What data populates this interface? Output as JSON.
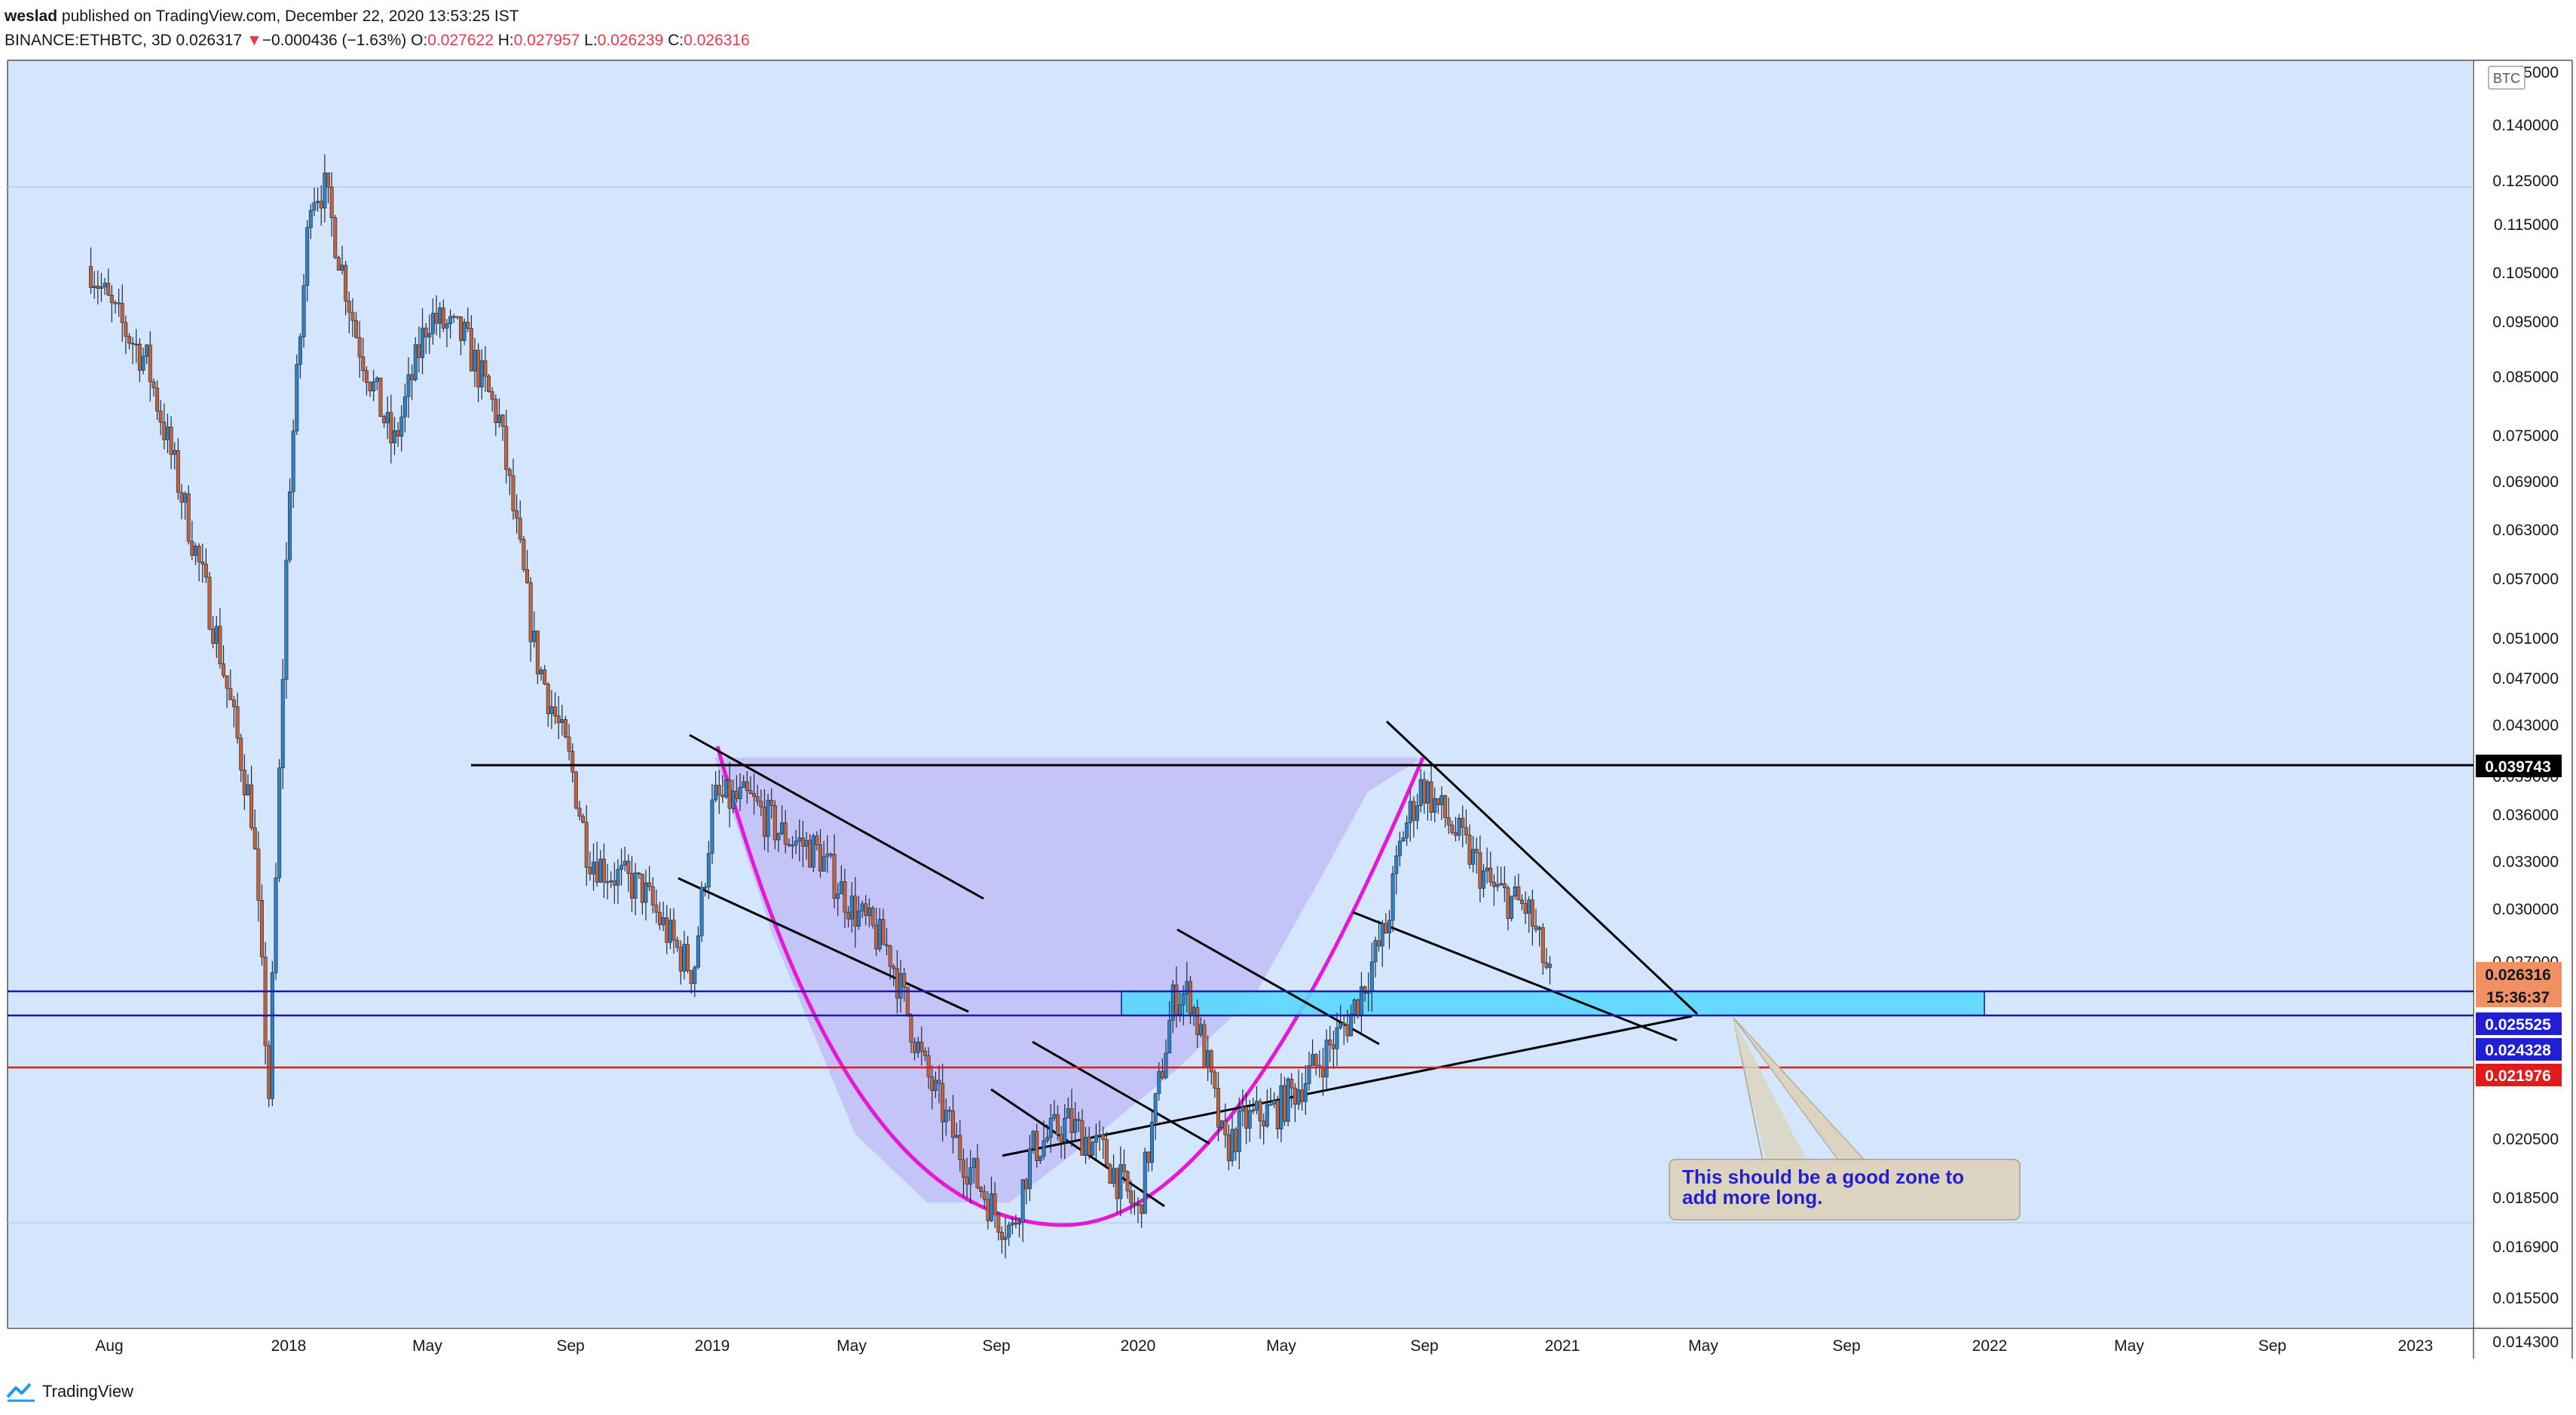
{
  "header": {
    "user": "weslad",
    "published": "published on TradingView.com, December 22, 2020 13:53:25 IST",
    "symbol": "BINANCE:ETHBTC, 3D",
    "last": "0.026317",
    "change_arrow": "▼",
    "change": "−0.000436 (−1.63%)",
    "o_label": "O:",
    "o_value": "0.027622",
    "h_label": "H:",
    "h_value": "0.027957",
    "l_label": "L:",
    "l_value": "0.026239",
    "c_label": "C:",
    "c_value": "0.026316"
  },
  "footer": {
    "brand": "TradingView",
    "logo_icon": "tradingview-logo-icon"
  },
  "colors": {
    "plot_bg": "#d4e6fd",
    "bull": "#2f7fc1",
    "bear": "#c1623a",
    "cup": "#e418d9",
    "cup_fill": "#b8a7f5",
    "zone": "#59d8ff",
    "blue_line": "#1a1ab0",
    "red_line": "#e31a1a",
    "callout_bg": "#dcd3c1",
    "callout_text": "#2222cc"
  },
  "chart_data": {
    "type": "candlestick",
    "symbol": "BINANCE:ETHBTC",
    "interval": "3D",
    "y_scale": "log",
    "currency": "BTC",
    "ylim": [
      0.0127,
      0.16
    ],
    "x_ticks": [
      "Aug",
      "2018",
      "May",
      "Sep",
      "2019",
      "May",
      "Sep",
      "2020",
      "May",
      "Sep",
      "2021",
      "May",
      "Sep",
      "2022",
      "May",
      "Sep",
      "2023"
    ],
    "y_ticks": [
      "0.155000",
      "0.140000",
      "0.125000",
      "0.115000",
      "0.105000",
      "0.095000",
      "0.085000",
      "0.075000",
      "0.069000",
      "0.063000",
      "0.057000",
      "0.051000",
      "0.047000",
      "0.043000",
      "0.039000",
      "0.036000",
      "0.033000",
      "0.030000",
      "0.027000",
      "0.020500",
      "0.018500",
      "0.016900",
      "0.015500",
      "0.014300"
    ],
    "price_series": {
      "dates": [
        "2017-07-15",
        "2017-08-01",
        "2017-09-01",
        "2017-10-01",
        "2017-11-01",
        "2017-12-01",
        "2017-12-15",
        "2018-01-01",
        "2018-01-20",
        "2018-02-01",
        "2018-03-01",
        "2018-04-01",
        "2018-05-01",
        "2018-06-01",
        "2018-07-01",
        "2018-08-01",
        "2018-09-01",
        "2018-09-15",
        "2018-10-01",
        "2018-11-01",
        "2018-12-01",
        "2018-12-15",
        "2019-01-01",
        "2019-02-01",
        "2019-03-01",
        "2019-04-01",
        "2019-05-01",
        "2019-06-01",
        "2019-07-01",
        "2019-08-01",
        "2019-09-01",
        "2019-09-15",
        "2019-10-01",
        "2019-11-01",
        "2019-12-01",
        "2020-01-01",
        "2020-02-01",
        "2020-02-15",
        "2020-03-01",
        "2020-03-15",
        "2020-04-01",
        "2020-05-01",
        "2020-06-01",
        "2020-07-01",
        "2020-08-01",
        "2020-08-15",
        "2020-09-01",
        "2020-10-01",
        "2020-11-01",
        "2020-12-01",
        "2020-12-22"
      ],
      "close": [
        0.088,
        0.082,
        0.075,
        0.06,
        0.047,
        0.035,
        0.022,
        0.06,
        0.1,
        0.1,
        0.078,
        0.065,
        0.081,
        0.078,
        0.068,
        0.046,
        0.038,
        0.033,
        0.032,
        0.031,
        0.028,
        0.027,
        0.036,
        0.036,
        0.034,
        0.033,
        0.03,
        0.028,
        0.023,
        0.02,
        0.018,
        0.0175,
        0.02,
        0.021,
        0.02,
        0.018,
        0.026,
        0.026,
        0.023,
        0.02,
        0.021,
        0.0215,
        0.023,
        0.025,
        0.029,
        0.034,
        0.037,
        0.034,
        0.031,
        0.03,
        0.0263
      ]
    },
    "levels": {
      "resistance": "0.039743",
      "last_price": "0.026316",
      "countdown": "15:36:37",
      "zone_top": "0.025525",
      "zone_bottom": "0.024328",
      "support": "0.021976"
    },
    "annotations": {
      "callout_line1": "This should be a good zone to",
      "callout_line2": "add more long."
    }
  }
}
